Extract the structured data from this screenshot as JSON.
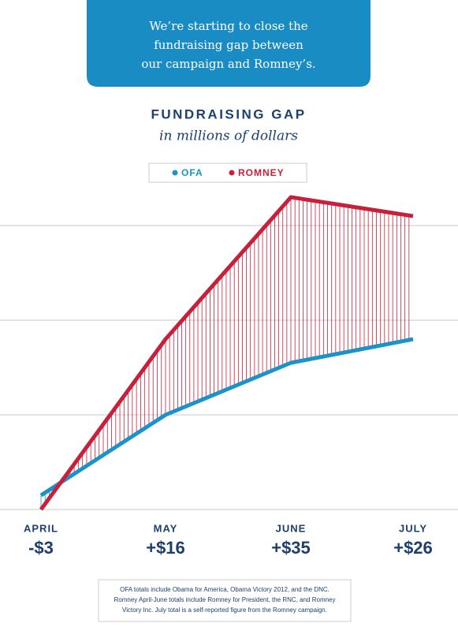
{
  "chart_data": {
    "type": "line",
    "header": [
      "We’re starting to close the",
      "fundraising gap between",
      "our campaign and Romney’s."
    ],
    "title": "FUNDRAISING GAP",
    "subtitle": "in millions of dollars",
    "categories": [
      "APRIL",
      "MAY",
      "JUNE",
      "JULY"
    ],
    "series": [
      {
        "name": "OFA",
        "color": "#1a93cb",
        "values": [
          3,
          20,
          31,
          36
        ]
      },
      {
        "name": "ROMNEY",
        "color": "#c8203a",
        "values": [
          0,
          36,
          66,
          62
        ]
      }
    ],
    "gap": {
      "values": [
        -3,
        16,
        35,
        26
      ],
      "value_labels": [
        "-$3",
        "+$16",
        "+$35",
        "+$26"
      ]
    },
    "ylim": [
      0,
      70
    ],
    "yticks": [
      0,
      20,
      40,
      60
    ],
    "grid": true,
    "footnote": [
      "OFA totals include Obama for America, Obama Victory 2012, and the DNC.",
      "Romney April-June totals include Romney for President, the RNC, and Romney",
      "Victory Inc. July total is a self-reported figure from the Romney campaign."
    ]
  }
}
